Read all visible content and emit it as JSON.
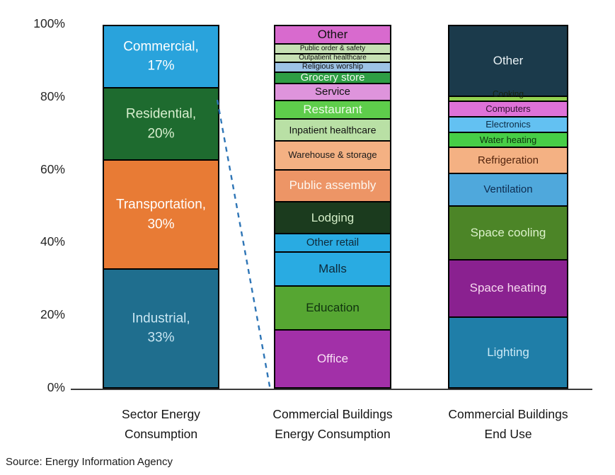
{
  "source_note": "Source: Energy Information Agency",
  "y_axis": {
    "ticks": [
      "100%",
      "80%",
      "60%",
      "40%",
      "20%",
      "0%"
    ]
  },
  "chart_data": {
    "type": "bar",
    "subtype": "stacked-100-percent",
    "unit": "percent",
    "ylim": [
      0,
      100
    ],
    "y_ticks": [
      100,
      80,
      60,
      40,
      20,
      0
    ],
    "grid": false,
    "legend": "none (labels drawn inside segments)",
    "annotation": "blue dashed connector line from right edge of Sector bar down to bottom-left of Commercial Buildings bar",
    "categories": [
      "Sector Energy Consumption",
      "Commercial Buildings Energy Consumption",
      "Commercial Buildings End Use"
    ],
    "bars": [
      {
        "category": "Sector Energy Consumption",
        "category_lines": [
          "Sector Energy",
          "Consumption"
        ],
        "segments_top_to_bottom": [
          {
            "label": "Commercial",
            "value": 17,
            "display_lines": [
              "Commercial,",
              "17%"
            ],
            "color": "#29A3DC",
            "text_color": "#FFFFFF",
            "fs": 19
          },
          {
            "label": "Residential",
            "value": 20,
            "display_lines": [
              "Residential,",
              "20%"
            ],
            "color": "#1E6B2F",
            "text_color": "#D8EFCF",
            "fs": 19
          },
          {
            "label": "Transportation",
            "value": 30,
            "display_lines": [
              "Transportation,",
              "30%"
            ],
            "color": "#E87B35",
            "text_color": "#FFFFFF",
            "fs": 19
          },
          {
            "label": "Industrial",
            "value": 33,
            "display_lines": [
              "Industrial,",
              "33%"
            ],
            "color": "#1F6E8E",
            "text_color": "#C9E6F2",
            "fs": 19
          }
        ]
      },
      {
        "category": "Commercial Buildings Energy Consumption",
        "category_lines": [
          "Commercial Buildings",
          "Energy Consumption"
        ],
        "segments_top_to_bottom": [
          {
            "label": "Other",
            "value": 5,
            "color": "#D86ACE",
            "text_color": "#111111",
            "fs": 17
          },
          {
            "label": "Public order & safety",
            "value": 2.5,
            "color": "#C6E0B4",
            "text_color": "#111111",
            "fs": 10
          },
          {
            "label": "Outpatient healthcare",
            "value": 2,
            "color": "#C6E0B4",
            "text_color": "#111111",
            "fs": 10
          },
          {
            "label": "Religious worship",
            "value": 2.5,
            "color": "#9DC3E6",
            "text_color": "#111111",
            "fs": 11
          },
          {
            "label": "Grocery store",
            "value": 3,
            "color": "#2E9E44",
            "text_color": "#F2FBEF",
            "fs": 15
          },
          {
            "label": "Service",
            "value": 4.5,
            "color": "#DE94DC",
            "text_color": "#111111",
            "fs": 15
          },
          {
            "label": "Restaurant",
            "value": 5,
            "color": "#5ECD4B",
            "text_color": "#EFFBEA",
            "fs": 17
          },
          {
            "label": "Inpatient healthcare",
            "value": 6,
            "color": "#B9E0A5",
            "text_color": "#111111",
            "fs": 14
          },
          {
            "label": "Warehouse & storage",
            "value": 8,
            "color": "#F4B183",
            "text_color": "#1A1A1A",
            "fs": 13
          },
          {
            "label": "Public assembly",
            "value": 9,
            "color": "#ED9566",
            "text_color": "#FDF6EF",
            "fs": 17
          },
          {
            "label": "Lodging",
            "value": 9,
            "color": "#1B3B1E",
            "text_color": "#D5EFC8",
            "fs": 17
          },
          {
            "label": "Other retail",
            "value": 5,
            "color": "#29ABE2",
            "text_color": "#0E2A3A",
            "fs": 15
          },
          {
            "label": "Malls",
            "value": 9.5,
            "color": "#29ABE2",
            "text_color": "#0E2A3A",
            "fs": 17
          },
          {
            "label": "Education",
            "value": 12.5,
            "color": "#56A632",
            "text_color": "#10330F",
            "fs": 17
          },
          {
            "label": "Office",
            "value": 16.5,
            "color": "#A230A8",
            "text_color": "#F8DFF4",
            "fs": 17
          }
        ]
      },
      {
        "category": "Commercial Buildings End Use",
        "category_lines": [
          "Commercial Buildings",
          "End Use"
        ],
        "segments_top_to_bottom": [
          {
            "label": "Other",
            "value": 20,
            "color": "#1B3A4B",
            "text_color": "#E9F1F4",
            "fs": 17
          },
          {
            "label": "Cooking",
            "value": 1,
            "color": "#92D050",
            "text_color": "#15230D",
            "fs": 12,
            "overflow": "up"
          },
          {
            "label": "Computers",
            "value": 4,
            "color": "#DE72D8",
            "text_color": "#301030",
            "fs": 13
          },
          {
            "label": "Electronics",
            "value": 4,
            "color": "#63C1F2",
            "text_color": "#0D2C45",
            "fs": 13
          },
          {
            "label": "Water heating",
            "value": 4,
            "color": "#47CE47",
            "text_color": "#0E330E",
            "fs": 13
          },
          {
            "label": "Refrigeration",
            "value": 7,
            "color": "#F4B183",
            "text_color": "#53250E",
            "fs": 15
          },
          {
            "label": "Ventilation",
            "value": 9,
            "color": "#4FA8DC",
            "text_color": "#0E2C50",
            "fs": 15
          },
          {
            "label": "Space cooling",
            "value": 15,
            "color": "#4C8527",
            "text_color": "#DCF2CB",
            "fs": 17
          },
          {
            "label": "Space heating",
            "value": 16,
            "color": "#8A2190",
            "text_color": "#F6D8EF",
            "fs": 17
          },
          {
            "label": "Lighting",
            "value": 20,
            "color": "#1F7EA8",
            "text_color": "#CBE9F6",
            "fs": 17
          }
        ]
      }
    ],
    "connector_color": "#2E75B6"
  }
}
